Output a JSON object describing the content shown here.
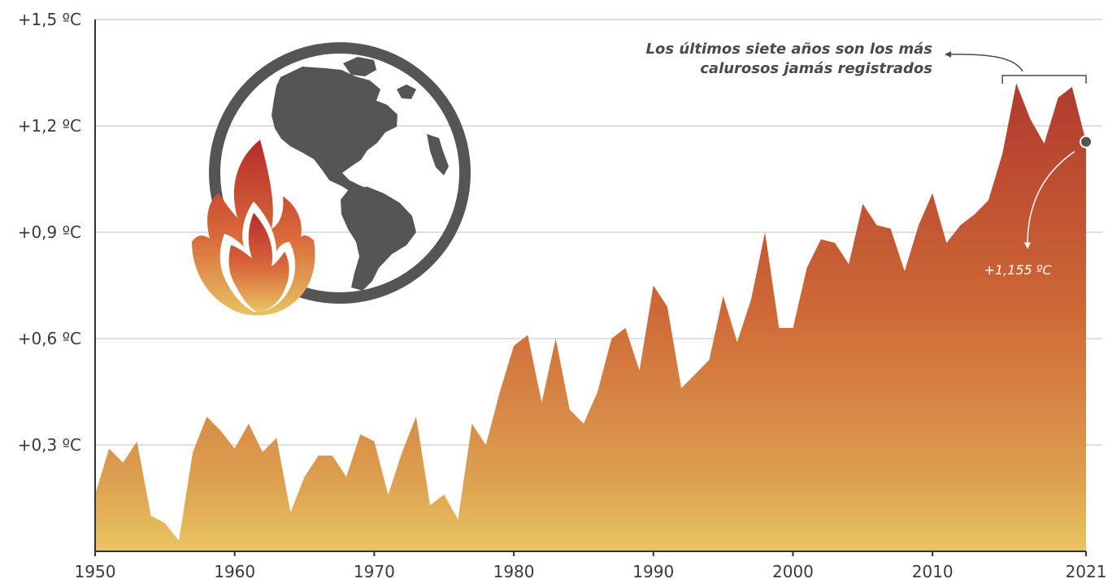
{
  "chart_data": {
    "type": "area",
    "title": "",
    "xlabel": "",
    "ylabel": "",
    "xlim": [
      1950,
      2021
    ],
    "ylim": [
      0,
      1.5
    ],
    "grid": true,
    "y_ticks": [
      {
        "value": 0.3,
        "label": "+0,3 ºC"
      },
      {
        "value": 0.6,
        "label": "+0,6 ºC"
      },
      {
        "value": 0.9,
        "label": "+0,9 ºC"
      },
      {
        "value": 1.2,
        "label": "+1,2 ºC"
      },
      {
        "value": 1.5,
        "label": "+1,5 ºC"
      }
    ],
    "x_ticks": [
      {
        "value": 1950,
        "label": "1950"
      },
      {
        "value": 1960,
        "label": "1960"
      },
      {
        "value": 1970,
        "label": "1970"
      },
      {
        "value": 1980,
        "label": "1980"
      },
      {
        "value": 1990,
        "label": "1990"
      },
      {
        "value": 2000,
        "label": "2000"
      },
      {
        "value": 2010,
        "label": "2010"
      },
      {
        "value": 2021,
        "label": "2021"
      }
    ],
    "series": [
      {
        "x": [
          1950,
          1951,
          1952,
          1953,
          1954,
          1955,
          1956,
          1957,
          1958,
          1959,
          1960,
          1961,
          1962,
          1963,
          1964,
          1965,
          1966,
          1967,
          1968,
          1969,
          1970,
          1971,
          1972,
          1973,
          1974,
          1975,
          1976,
          1977,
          1978,
          1979,
          1980,
          1981,
          1982,
          1983,
          1984,
          1985,
          1986,
          1987,
          1988,
          1989,
          1990,
          1991,
          1992,
          1993,
          1994,
          1995,
          1996,
          1997,
          1998,
          1999,
          2000,
          2001,
          2002,
          2003,
          2004,
          2005,
          2006,
          2007,
          2008,
          2009,
          2010,
          2011,
          2012,
          2013,
          2014,
          2015,
          2016,
          2017,
          2018,
          2019,
          2020,
          2021
        ],
        "values": [
          0.16,
          0.29,
          0.25,
          0.31,
          0.1,
          0.08,
          0.03,
          0.28,
          0.38,
          0.34,
          0.29,
          0.36,
          0.28,
          0.32,
          0.11,
          0.21,
          0.27,
          0.27,
          0.21,
          0.33,
          0.31,
          0.16,
          0.28,
          0.38,
          0.13,
          0.16,
          0.09,
          0.36,
          0.3,
          0.45,
          0.58,
          0.61,
          0.42,
          0.6,
          0.4,
          0.36,
          0.45,
          0.6,
          0.63,
          0.51,
          0.75,
          0.69,
          0.46,
          0.5,
          0.54,
          0.72,
          0.59,
          0.71,
          0.9,
          0.63,
          0.63,
          0.8,
          0.88,
          0.87,
          0.81,
          0.98,
          0.92,
          0.91,
          0.79,
          0.92,
          1.01,
          0.87,
          0.92,
          0.95,
          0.99,
          1.12,
          1.32,
          1.22,
          1.15,
          1.28,
          1.31,
          1.155
        ]
      }
    ],
    "annotations": {
      "record_text_line1": "Los últimos siete años son los más",
      "record_text_line2": "calurosos jamás registrados",
      "last_value_label": "+1,155 ºC"
    },
    "colors": {
      "fill_top": "#b03a2e",
      "fill_mid": "#d2703a",
      "fill_bottom": "#e8c15a",
      "grid": "#bfbfbf",
      "axis": "#333333",
      "globe": "#555555",
      "annotation": "#4a4a4a"
    },
    "icons": [
      "earth-globe-icon",
      "flame-icon"
    ]
  }
}
